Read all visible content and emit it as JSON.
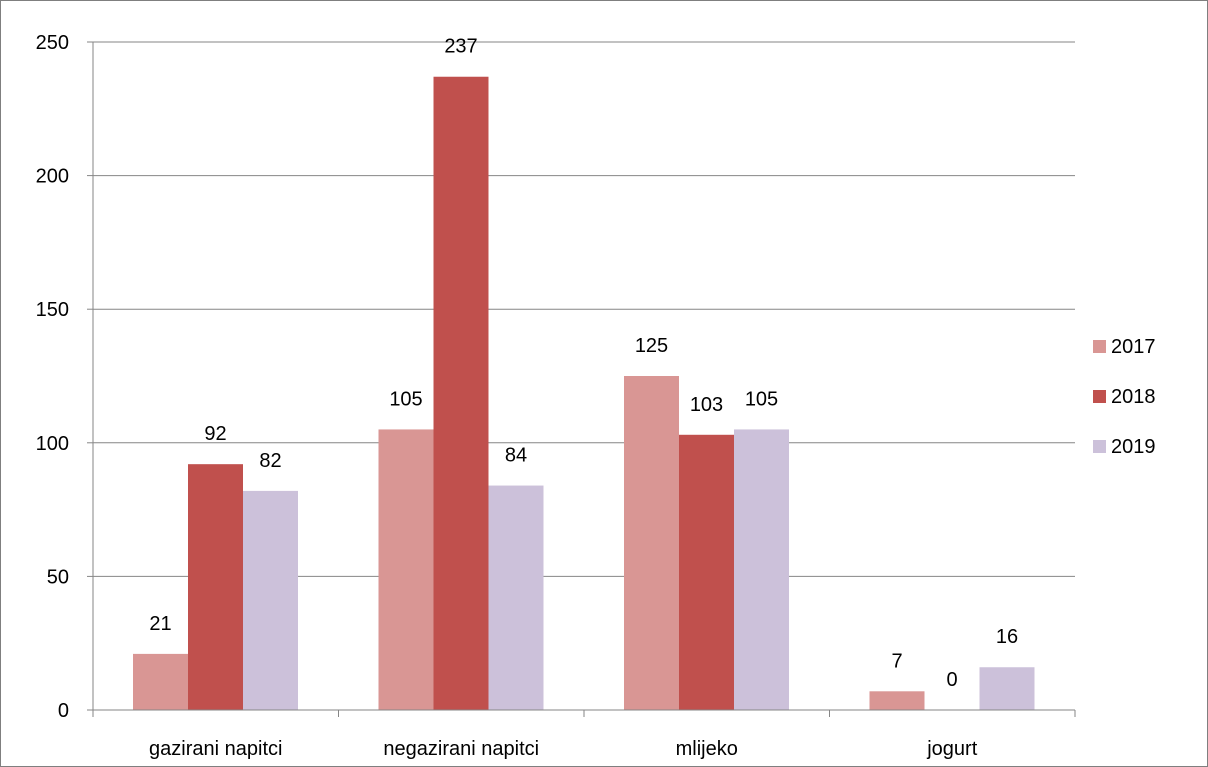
{
  "chart_data": {
    "type": "bar",
    "categories": [
      "gazirani napitci",
      "negazirani napitci",
      "mlijeko",
      "jogurt"
    ],
    "series": [
      {
        "name": "2017",
        "values": [
          21,
          105,
          125,
          7
        ],
        "color": "#d99694"
      },
      {
        "name": "2018",
        "values": [
          92,
          237,
          103,
          0
        ],
        "color": "#c0504d"
      },
      {
        "name": "2019",
        "values": [
          82,
          84,
          105,
          16
        ],
        "color": "#ccc1da"
      }
    ],
    "title": "",
    "xlabel": "",
    "ylabel": "",
    "ylim": [
      0,
      250
    ],
    "yticks": [
      0,
      50,
      100,
      150,
      200,
      250
    ],
    "grid": true,
    "legend": "right",
    "data_labels": true
  }
}
